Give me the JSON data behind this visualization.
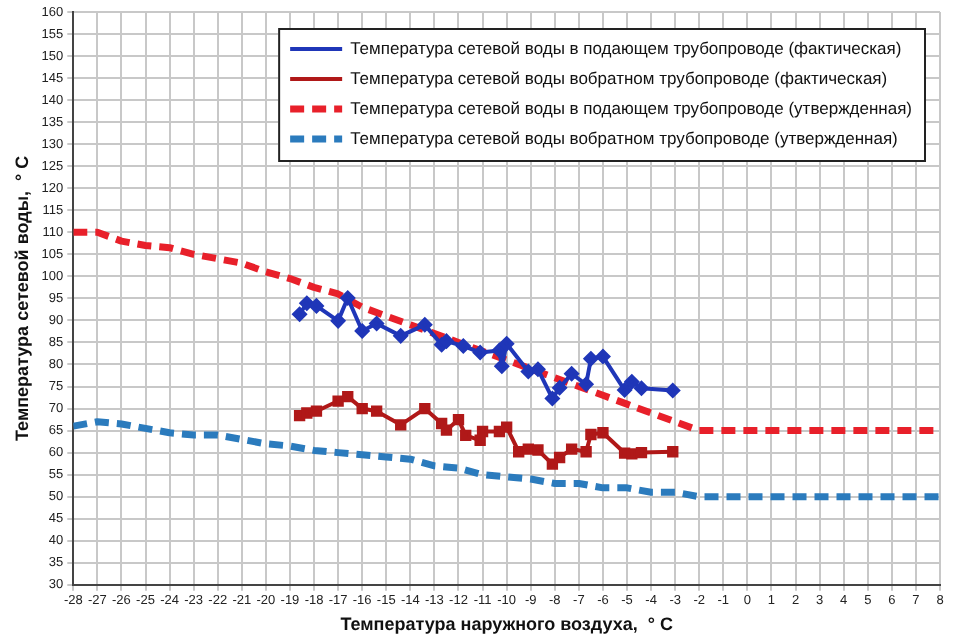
{
  "chart_data": {
    "type": "line",
    "xlabel": "Температура наружного воздуха,  ° С",
    "ylabel": "Температура сетевой воды,  ° С",
    "xlim": [
      -28,
      8
    ],
    "xticks": [
      -28,
      -27,
      -26,
      -25,
      -24,
      -23,
      -22,
      -21,
      -20,
      -19,
      -18,
      -17,
      -16,
      -15,
      -14,
      -13,
      -12,
      -11,
      -10,
      -9,
      -8,
      -7,
      -6,
      -5,
      -4,
      -3,
      -2,
      -1,
      0,
      1,
      2,
      3,
      4,
      5,
      6,
      7,
      8
    ],
    "ylim": [
      30,
      160
    ],
    "yticks": [
      30,
      35,
      40,
      45,
      50,
      55,
      60,
      65,
      70,
      75,
      80,
      85,
      90,
      95,
      100,
      105,
      110,
      115,
      120,
      125,
      130,
      135,
      140,
      145,
      150,
      155,
      160
    ],
    "grid": true,
    "legend": "top right",
    "series": [
      {
        "name": "Температура сетевой воды в подающем трубопроводе (фактическая)",
        "color": "#1f36b8",
        "marker": "diamond",
        "line_style": "solid",
        "x": [
          -18.6,
          -18.3,
          -17.9,
          -17,
          -16.6,
          -16,
          -15.4,
          -14.4,
          -13.4,
          -12.7,
          -12.5,
          -11.8,
          -11.1,
          -10.3,
          -10.2,
          -10,
          -9.1,
          -8.7,
          -8.1,
          -7.8,
          -7.3,
          -6.7,
          -6.5,
          -6,
          -5.1,
          -4.8,
          -4.4,
          -3.1
        ],
        "values": [
          91.4,
          93.9,
          93.3,
          89.9,
          95.1,
          87.6,
          89.3,
          86.5,
          89,
          84.5,
          85.3,
          84.2,
          82.7,
          83.2,
          79.6,
          84.7,
          78.4,
          78.9,
          72.3,
          74.7,
          77.9,
          75.5,
          81.3,
          81.8,
          74.2,
          76.1,
          74.6,
          74.1
        ]
      },
      {
        "name": "Температура сетевой воды вобратном трубопроводе (фактическая)",
        "color": "#b01818",
        "marker": "square",
        "line_style": "solid",
        "x": [
          -18.6,
          -18.3,
          -17.9,
          -17,
          -16.6,
          -16,
          -15.4,
          -14.4,
          -13.4,
          -12.7,
          -12.5,
          -12,
          -11.7,
          -11.1,
          -11,
          -10.3,
          -10,
          -9.5,
          -9.1,
          -8.7,
          -8.1,
          -7.8,
          -7.3,
          -6.7,
          -6.5,
          -6,
          -5.1,
          -4.8,
          -4.4,
          -3.1
        ],
        "values": [
          68.4,
          69,
          69.4,
          71.7,
          72.7,
          70,
          69.4,
          66.3,
          70,
          66.6,
          65.1,
          67.5,
          63.9,
          62.8,
          64.8,
          64.8,
          65.8,
          60.2,
          60.8,
          60.6,
          57.4,
          58.9,
          60.8,
          60.2,
          64.1,
          64.5,
          59.9,
          59.7,
          60,
          60.2
        ]
      },
      {
        "name": "Температура сетевой воды в подающем трубопроводе (утвержденная)",
        "color": "#e8202a",
        "marker": "none",
        "line_style": "dashed",
        "x": [
          -28,
          -27,
          -26,
          -25,
          -24,
          -23,
          -22,
          -21,
          -20,
          -19,
          -18,
          -17,
          -16,
          -15,
          -14,
          -13,
          -12,
          -11,
          -10,
          -9,
          -8,
          -7,
          -6,
          -5,
          -4,
          -3,
          -2,
          -1,
          0,
          1,
          2,
          3,
          4,
          5,
          6,
          7,
          8
        ],
        "values": [
          110,
          110,
          108,
          107,
          106.5,
          105,
          104,
          103,
          101,
          99.5,
          97.5,
          96,
          93,
          91,
          89,
          87,
          85,
          83,
          81,
          79,
          77,
          75,
          73,
          71,
          69,
          67,
          65,
          65,
          65,
          65,
          65,
          65,
          65,
          65,
          65,
          65,
          65
        ]
      },
      {
        "name": "Температура сетевой воды вобратном трубопроводе (утвержденная)",
        "color": "#2b7bbd",
        "marker": "none",
        "line_style": "dashed",
        "x": [
          -28,
          -27,
          -26,
          -25,
          -24,
          -23,
          -22,
          -21,
          -20,
          -19,
          -18,
          -17,
          -16,
          -15,
          -14,
          -13,
          -12,
          -11,
          -10,
          -9,
          -8,
          -7,
          -6,
          -5,
          -4,
          -3,
          -2,
          -1,
          0,
          1,
          2,
          3,
          4,
          5,
          6,
          7,
          8
        ],
        "values": [
          66,
          67,
          66.5,
          65.5,
          64.5,
          64,
          64,
          63,
          62,
          61.5,
          60.5,
          60,
          59.5,
          59,
          58.5,
          57,
          56.5,
          55,
          54.5,
          54,
          53,
          53,
          52,
          52,
          51,
          51,
          50,
          50,
          50,
          50,
          50,
          50,
          50,
          50,
          50,
          50,
          50
        ]
      }
    ]
  }
}
